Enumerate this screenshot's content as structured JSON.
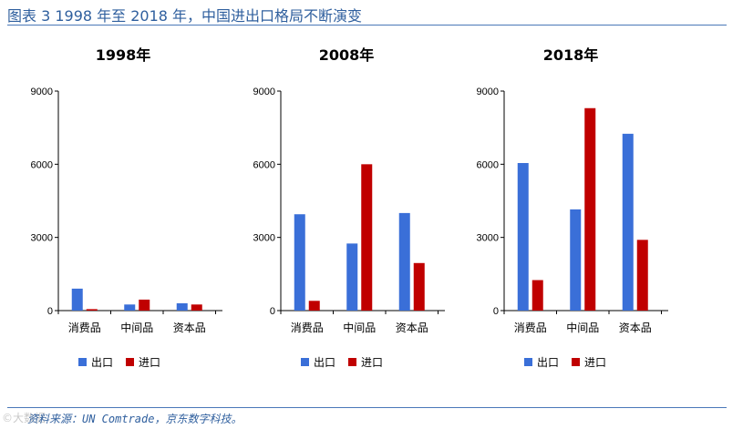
{
  "figure": {
    "title": "图表 3 1998 年至 2018 年，中国进出口格局不断演变",
    "source": "资料来源：UN Comtrade，京东数字科技。",
    "watermark": "©大数据"
  },
  "colors": {
    "export": "#3a6fd8",
    "import": "#c00000",
    "axis": "#000000",
    "accent": "#2f5f9e"
  },
  "chart_data": [
    {
      "type": "bar",
      "title": "1998年",
      "categories": [
        "消费品",
        "中间品",
        "资本品"
      ],
      "series": [
        {
          "name": "出口",
          "values": [
            900,
            250,
            300
          ]
        },
        {
          "name": "进口",
          "values": [
            60,
            450,
            250
          ]
        }
      ],
      "ylim": [
        0,
        9000
      ],
      "yticks": [
        0,
        3000,
        6000,
        9000
      ],
      "legend": "bottom"
    },
    {
      "type": "bar",
      "title": "2008年",
      "categories": [
        "消费品",
        "中间品",
        "资本品"
      ],
      "series": [
        {
          "name": "出口",
          "values": [
            3950,
            2750,
            4000
          ]
        },
        {
          "name": "进口",
          "values": [
            400,
            6000,
            1950
          ]
        }
      ],
      "ylim": [
        0,
        9000
      ],
      "yticks": [
        0,
        3000,
        6000,
        9000
      ],
      "legend": "bottom"
    },
    {
      "type": "bar",
      "title": "2018年",
      "categories": [
        "消费品",
        "中间品",
        "资本品"
      ],
      "series": [
        {
          "name": "出口",
          "values": [
            6050,
            4150,
            7250
          ]
        },
        {
          "name": "进口",
          "values": [
            1250,
            8300,
            2900
          ]
        }
      ],
      "ylim": [
        0,
        9000
      ],
      "yticks": [
        0,
        3000,
        6000,
        9000
      ],
      "legend": "bottom"
    }
  ]
}
